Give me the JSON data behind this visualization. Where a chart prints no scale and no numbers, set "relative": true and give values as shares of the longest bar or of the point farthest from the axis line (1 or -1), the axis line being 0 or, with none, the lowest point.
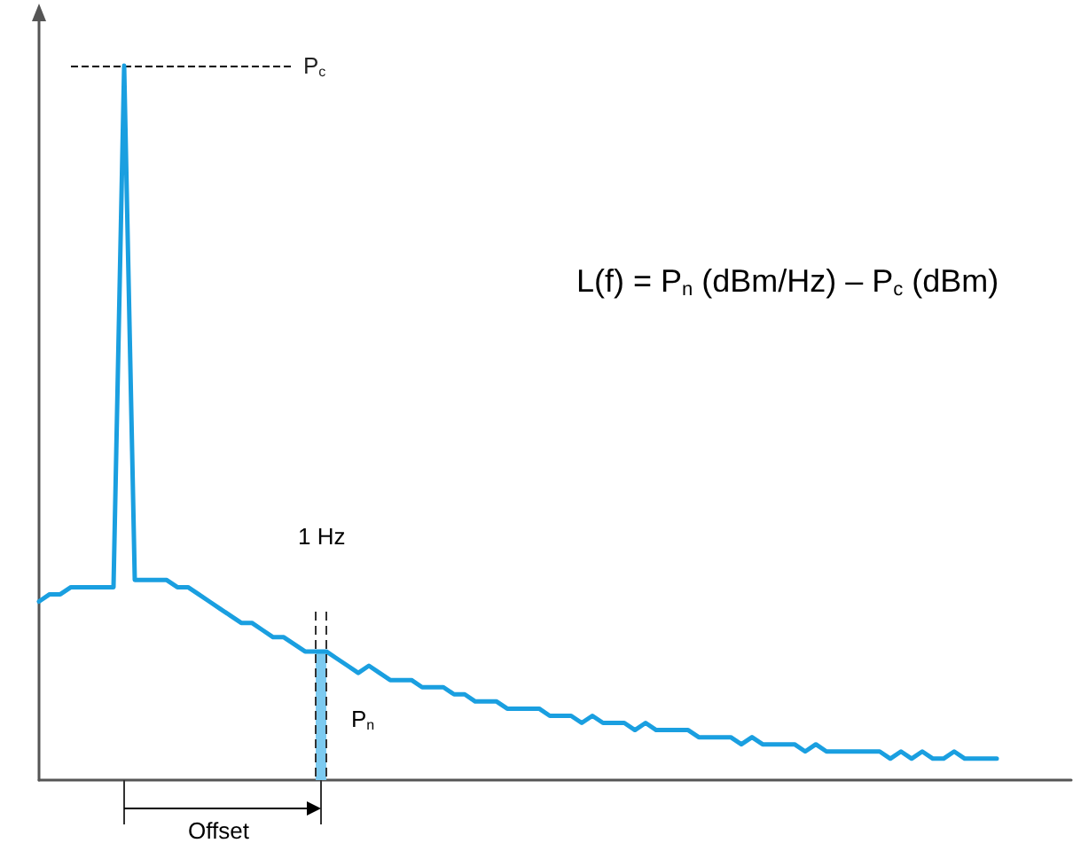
{
  "chart_data": {
    "type": "line",
    "relative": true,
    "tick_labels": false,
    "marker": "none",
    "line_style": "solid",
    "categories": [
      null,
      null,
      null,
      null,
      null,
      null,
      null,
      null,
      null,
      null,
      null,
      null,
      null,
      null,
      null,
      null,
      null,
      null,
      null,
      null,
      null,
      null,
      null,
      null,
      null,
      null,
      null,
      null,
      null,
      null,
      null,
      null,
      null,
      null,
      null,
      null,
      null,
      null,
      null,
      null,
      null,
      null,
      null,
      null,
      null,
      null,
      null,
      null,
      null,
      null,
      null,
      null,
      null,
      null,
      null,
      null,
      null,
      null,
      null,
      null,
      null,
      null,
      null,
      null,
      null,
      null,
      null,
      null,
      null,
      null,
      null,
      null,
      null,
      null,
      null,
      null,
      null,
      null,
      null,
      null,
      null,
      null,
      null,
      null,
      null,
      null,
      null,
      null,
      null,
      null,
      null,
      null,
      null,
      null,
      null,
      null,
      null,
      null
    ],
    "series": [
      {
        "color": "#1a9fe0",
        "values": [
          0.25,
          0.26,
          0.26,
          0.27,
          0.27,
          0.27,
          0.27,
          0.27,
          1.0,
          0.28,
          0.28,
          0.28,
          0.28,
          0.27,
          0.27,
          0.26,
          0.25,
          0.24,
          0.23,
          0.22,
          0.22,
          0.21,
          0.2,
          0.2,
          0.19,
          0.18,
          0.18,
          0.18,
          0.17,
          0.16,
          0.15,
          0.16,
          0.15,
          0.14,
          0.14,
          0.14,
          0.13,
          0.13,
          0.13,
          0.12,
          0.12,
          0.11,
          0.11,
          0.11,
          0.1,
          0.1,
          0.1,
          0.1,
          0.09,
          0.09,
          0.09,
          0.08,
          0.09,
          0.08,
          0.08,
          0.08,
          0.07,
          0.08,
          0.07,
          0.07,
          0.07,
          0.07,
          0.06,
          0.06,
          0.06,
          0.06,
          0.05,
          0.06,
          0.05,
          0.05,
          0.05,
          0.05,
          0.04,
          0.05,
          0.04,
          0.04,
          0.04,
          0.04,
          0.04,
          0.04,
          0.03,
          0.04,
          0.03,
          0.04,
          0.03,
          0.03,
          0.04,
          0.03,
          0.03,
          0.03,
          0.03,
          null,
          null,
          null,
          null,
          null,
          null,
          null
        ]
      },
      {
        "type": "area",
        "color": "#7ccaf0",
        "values": [
          null,
          null,
          null,
          null,
          null,
          null,
          null,
          null,
          null,
          null,
          null,
          null,
          null,
          null,
          null,
          null,
          null,
          null,
          null,
          null,
          null,
          null,
          null,
          null,
          null,
          null,
          0.18,
          0.18,
          null,
          null,
          null,
          null,
          null,
          null,
          null,
          null,
          null,
          null,
          null,
          null,
          null,
          null,
          null,
          null,
          null,
          null,
          null,
          null,
          null,
          null,
          null,
          null,
          null,
          null,
          null,
          null,
          null,
          null,
          null,
          null,
          null,
          null,
          null,
          null,
          null,
          null,
          null,
          null,
          null,
          null,
          null,
          null,
          null,
          null,
          null,
          null,
          null,
          null,
          null,
          null,
          null,
          null,
          null,
          null,
          null,
          null,
          null,
          null,
          null,
          null,
          null,
          null,
          null,
          null,
          null,
          null,
          null,
          null
        ]
      }
    ],
    "ref_lines": [
      {
        "axis": "y",
        "value": 1,
        "label": "P$_{c}$",
        "line_style": "dashed",
        "color": "#000000"
      }
    ],
    "annotations": [
      "L(f) = P$_{n}$ (dBm/Hz) – P$_{c}$ (dBm)",
      "1 Hz",
      "P$_{n}$",
      "Offset"
    ]
  }
}
